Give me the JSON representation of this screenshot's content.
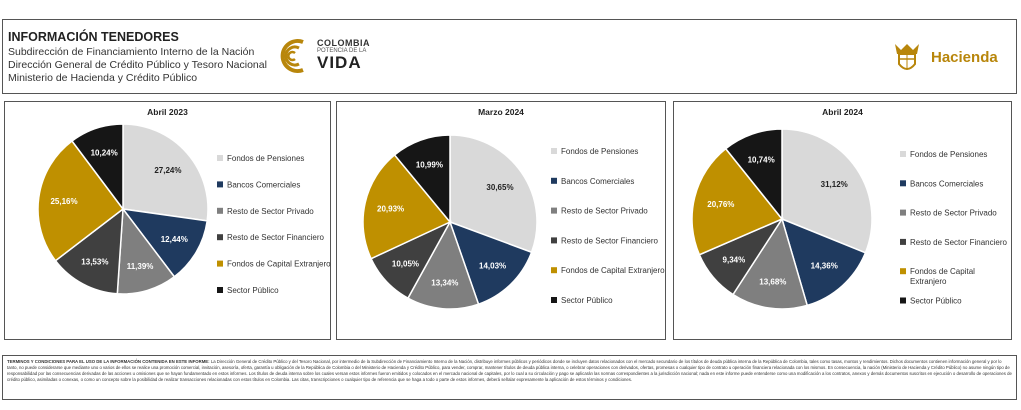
{
  "header": {
    "title": "INFORMACIÓN TENEDORES",
    "lines": [
      "Subdirección de Financiamiento Interno de la Nación",
      "Dirección General de Crédito Público y Tesoro Nacional",
      "Ministerio de Hacienda y Crédito Público"
    ],
    "logo_colombia": {
      "line1": "COLOMBIA",
      "line2": "POTENCIA DE LA",
      "line3": "VIDA"
    },
    "logo_hacienda": "Hacienda"
  },
  "colors": {
    "Fondos de Pensiones": "#d9d9d9",
    "Bancos Comerciales": "#1f3a5f",
    "Resto de Sector Privado": "#7f7f7f",
    "Resto de Sector Financiero": "#404040",
    "Fondos de Capital Extranjero": "#bf9000",
    "Sector Público": "#161616"
  },
  "chart_data": [
    {
      "type": "pie",
      "title": "Abril 2023",
      "labels": [
        "Fondos de Pensiones",
        "Bancos Comerciales",
        "Resto de Sector Privado",
        "Resto de Sector Financiero",
        "Fondos de Capital Extranjero",
        "Sector Público"
      ],
      "values": [
        27.24,
        12.44,
        11.39,
        13.53,
        25.16,
        10.24
      ],
      "value_labels": [
        "27,24%",
        "12,44%",
        "11,39%",
        "13,53%",
        "25,16%",
        "10,24%"
      ],
      "legend_position": "right"
    },
    {
      "type": "pie",
      "title": "Marzo 2024",
      "labels": [
        "Fondos de Pensiones",
        "Bancos Comerciales",
        "Resto de Sector Privado",
        "Resto de Sector Financiero",
        "Fondos de Capital Extranjero",
        "Sector Público"
      ],
      "values": [
        30.65,
        14.03,
        13.34,
        10.05,
        20.93,
        10.99
      ],
      "value_labels": [
        "30,65%",
        "14,03%",
        "13,34%",
        "10,05%",
        "20,93%",
        "10,99%"
      ],
      "legend_position": "right"
    },
    {
      "type": "pie",
      "title": "Abril 2024",
      "labels": [
        "Fondos de Pensiones",
        "Bancos Comerciales",
        "Resto de Sector Privado",
        "Resto de Sector Financiero",
        "Fondos de Capital Extranjero",
        "Sector Público"
      ],
      "values": [
        31.12,
        14.36,
        13.68,
        9.34,
        20.76,
        10.74
      ],
      "value_labels": [
        "31,12%",
        "14,36%",
        "13,68%",
        "9,34%",
        "20,76%",
        "10,74%"
      ],
      "legend_position": "right"
    }
  ],
  "footer": {
    "heading": "TERMINOS Y CONDICIONES PARA EL USO DE LA INFORMACIÓN CONTENIDA EN ESTE INFORME:",
    "body": "La Dirección General de Crédito Público y del Tesoro Nacional, por intermedio de la Subdirección de Financiamiento Interno de la Nación, distribuye informes públicos y periódicos donde se incluyen datos relacionados con el mercado secundario de los títulos de deuda pública interna de la República de Colombia, tales como tasas, montos y rendimientos. Dichos documentos contienen información general y por lo tanto, no puede considerarse que mediante uno o varios de ellos se realice una promoción comercial, invitación, asesoría, oferta, garantía u obligación de la República de Colombia o del Ministerio de Hacienda y Crédito Público, para vender, comprar, mantener títulos de deuda pública interna, o celebrar operaciones con derivados, ofertas, promesas o cualquier tipo de contrato u operación financiera relacionada con los mismos. En consecuencia, la nación (Ministerio de Hacienda y Crédito Público) no asume ningún tipo de responsabilidad por las consecuencias derivadas de las acciones u omisiones que se hayan fundamentado en estos informes. Los títulos de deuda interna sobre los cuales versan estos informes fueron emitidos y colocados en el mercado nacional de capitales, por lo cual a su circulación y pago se aplicarán las normas correspondientes a la jurisdicción nacional; nada en este informe puede entenderse como una modificación a los contratos, anexos y demás documentos suscritos en ejecución o desarrollo de operaciones de crédito público, asimiladas o conexas, o como un concepto sobre la posibilidad de realizar transacciones relacionadas con estos títulos en Colombia. Las citas, transcripciones o cualquier tipo de referencia que se haga a todo o parte de estos informes, deberá señalar expresamente la aplicación de estos términos y condiciones."
  }
}
